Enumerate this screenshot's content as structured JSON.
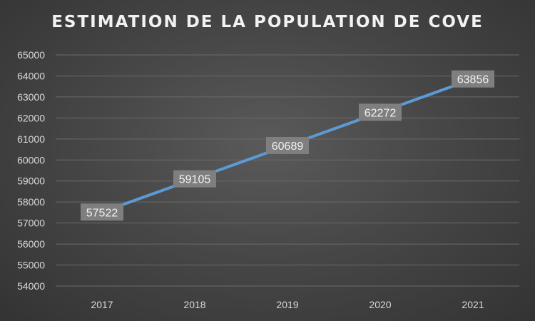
{
  "chart_data": {
    "type": "line",
    "title": "ESTIMATION DE LA POPULATION DE COVE",
    "categories": [
      "2017",
      "2018",
      "2019",
      "2020",
      "2021"
    ],
    "series": [
      {
        "values": [
          57522,
          59105,
          60689,
          62272,
          63856
        ]
      }
    ],
    "data_labels": [
      "57522",
      "59105",
      "60689",
      "62272",
      "63856"
    ],
    "y_ticks": [
      "54000",
      "55000",
      "56000",
      "57000",
      "58000",
      "59000",
      "60000",
      "61000",
      "62000",
      "63000",
      "64000",
      "65000"
    ],
    "ylim": [
      54000,
      65000
    ],
    "grid": true,
    "legend": "none",
    "colors": {
      "line": "#5b9bd5",
      "label_box": "#7f7f7f",
      "background": "#404040"
    }
  }
}
